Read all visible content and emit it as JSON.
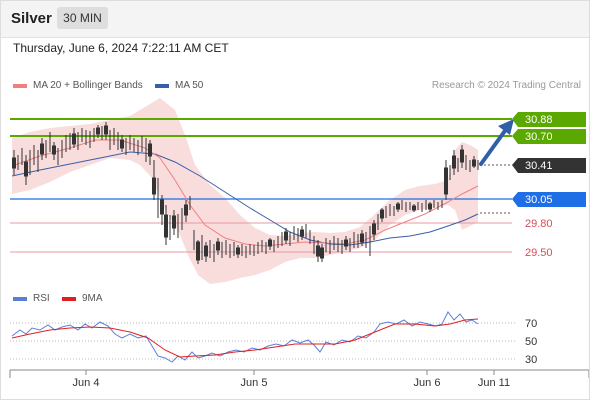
{
  "header": {
    "symbol": "Silver",
    "timeframe": "30 MIN"
  },
  "datetime": "Thursday, June 6, 2024 7:22:11 AM CET",
  "legend": {
    "ma20": {
      "label": "MA 20 + Bollinger Bands",
      "color": "#f08080"
    },
    "ma50": {
      "label": "MA 50",
      "color": "#3a5ea8"
    },
    "credit": "Research © 2024 Trading Central"
  },
  "rsi_legend": {
    "rsi": {
      "label": "RSI",
      "color": "#5b7fd6"
    },
    "ma9": {
      "label": "9MA",
      "color": "#e02020"
    }
  },
  "price_labels": [
    {
      "value": "30.88",
      "kind": "resistance",
      "color": "#5aa800"
    },
    {
      "value": "30.70",
      "kind": "resistance",
      "color": "#5aa800"
    },
    {
      "value": "30.41",
      "kind": "current",
      "color": "#333333"
    },
    {
      "value": "30.05",
      "kind": "pivot",
      "color": "#1e6ee6"
    },
    {
      "value": "29.80",
      "kind": "support",
      "color": "#d84a5a"
    },
    {
      "value": "29.50",
      "kind": "support",
      "color": "#d84a5a"
    }
  ],
  "rsi_levels": [
    "70",
    "50",
    "30"
  ],
  "x_axis": [
    "Jun 4",
    "Jun 5",
    "Jun 6",
    "Jun 11"
  ]
}
